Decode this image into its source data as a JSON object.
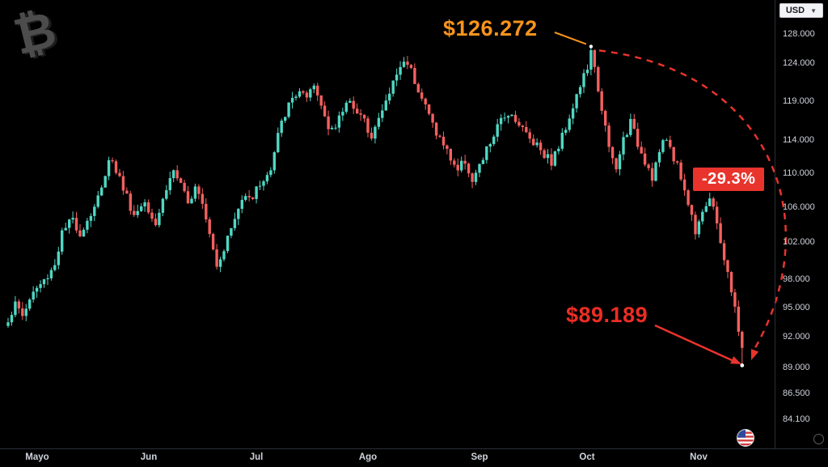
{
  "header": {
    "currency_label": "USD"
  },
  "watermark": {
    "symbol": "₿"
  },
  "annotations": {
    "peak_label": "$126.272",
    "low_label": "$89.189",
    "change_badge": "-29.3%",
    "peak_color": "#f7941d",
    "low_color": "#ed2d24",
    "badge_bg": "#e8342c"
  },
  "axes": {
    "price_ticks": [
      {
        "value": 128000,
        "label": "128.000"
      },
      {
        "value": 124000,
        "label": "124.000"
      },
      {
        "value": 119000,
        "label": "119.000"
      },
      {
        "value": 114000,
        "label": "114.000"
      },
      {
        "value": 110000,
        "label": "110.000"
      },
      {
        "value": 106000,
        "label": "106.000"
      },
      {
        "value": 102000,
        "label": "102.000"
      },
      {
        "value": 98000,
        "label": "98.000"
      },
      {
        "value": 95000,
        "label": "95.000"
      },
      {
        "value": 92000,
        "label": "92.000"
      },
      {
        "value": 89000,
        "label": "89.000"
      },
      {
        "value": 86500,
        "label": "86.500"
      },
      {
        "value": 84100,
        "label": "84.100"
      }
    ],
    "month_labels": [
      {
        "label": "Mayo",
        "day": 8
      },
      {
        "label": "Jun",
        "day": 39
      },
      {
        "label": "Jul",
        "day": 69
      },
      {
        "label": "Ago",
        "day": 100
      },
      {
        "label": "Sep",
        "day": 131
      },
      {
        "label": "Oct",
        "day": 161
      },
      {
        "label": "Nov",
        "day": 192
      }
    ]
  },
  "chart_data": {
    "type": "candlestick",
    "y_scale": "log",
    "visible_price_range": [
      82500,
      131000
    ],
    "up_color": "#4fd8c4",
    "down_color": "#f4605f",
    "peak": {
      "day": 162,
      "price": 126272
    },
    "low": {
      "day": 204,
      "price": 89189
    },
    "decline_pct": -29.3,
    "anchors": [
      [
        0,
        93800
      ],
      [
        2,
        95300
      ],
      [
        4,
        94200
      ],
      [
        7,
        96600
      ],
      [
        10,
        97800
      ],
      [
        13,
        99600
      ],
      [
        15,
        103000
      ],
      [
        18,
        104600
      ],
      [
        20,
        103000
      ],
      [
        23,
        105200
      ],
      [
        26,
        108000
      ],
      [
        28,
        112000
      ],
      [
        30,
        110400
      ],
      [
        33,
        107200
      ],
      [
        35,
        105000
      ],
      [
        38,
        106800
      ],
      [
        41,
        104200
      ],
      [
        44,
        108200
      ],
      [
        46,
        110400
      ],
      [
        48,
        108400
      ],
      [
        50,
        106200
      ],
      [
        52,
        108800
      ],
      [
        54,
        106800
      ],
      [
        56,
        103200
      ],
      [
        58,
        99600
      ],
      [
        60,
        101400
      ],
      [
        63,
        104600
      ],
      [
        66,
        107800
      ],
      [
        68,
        107200
      ],
      [
        70,
        108800
      ],
      [
        73,
        110200
      ],
      [
        75,
        114600
      ],
      [
        77,
        117400
      ],
      [
        79,
        119200
      ],
      [
        81,
        120400
      ],
      [
        83,
        119000
      ],
      [
        85,
        120800
      ],
      [
        87,
        118400
      ],
      [
        89,
        116000
      ],
      [
        91,
        115400
      ],
      [
        93,
        117800
      ],
      [
        95,
        119400
      ],
      [
        97,
        117400
      ],
      [
        99,
        116200
      ],
      [
        101,
        114800
      ],
      [
        103,
        116600
      ],
      [
        105,
        118800
      ],
      [
        107,
        121400
      ],
      [
        109,
        123600
      ],
      [
        111,
        124300
      ],
      [
        113,
        121800
      ],
      [
        115,
        119400
      ],
      [
        117,
        117200
      ],
      [
        119,
        115000
      ],
      [
        121,
        113400
      ],
      [
        123,
        111800
      ],
      [
        125,
        110400
      ],
      [
        127,
        111600
      ],
      [
        129,
        109000
      ],
      [
        131,
        110600
      ],
      [
        133,
        112800
      ],
      [
        135,
        114600
      ],
      [
        137,
        116400
      ],
      [
        139,
        117600
      ],
      [
        141,
        116800
      ],
      [
        143,
        115400
      ],
      [
        145,
        114200
      ],
      [
        147,
        113600
      ],
      [
        149,
        112400
      ],
      [
        151,
        111400
      ],
      [
        153,
        113200
      ],
      [
        155,
        115800
      ],
      [
        157,
        118400
      ],
      [
        159,
        121000
      ],
      [
        161,
        123400
      ],
      [
        162,
        125300
      ],
      [
        163,
        123000
      ],
      [
        165,
        118200
      ],
      [
        167,
        112800
      ],
      [
        169,
        110300
      ],
      [
        171,
        114200
      ],
      [
        173,
        116200
      ],
      [
        175,
        113600
      ],
      [
        177,
        111600
      ],
      [
        179,
        109600
      ],
      [
        181,
        112600
      ],
      [
        183,
        114200
      ],
      [
        185,
        112000
      ],
      [
        187,
        109600
      ],
      [
        189,
        106400
      ],
      [
        191,
        103400
      ],
      [
        193,
        105800
      ],
      [
        195,
        106800
      ],
      [
        197,
        104200
      ],
      [
        199,
        100200
      ],
      [
        201,
        96600
      ],
      [
        203,
        92800
      ],
      [
        204,
        91000
      ]
    ]
  }
}
